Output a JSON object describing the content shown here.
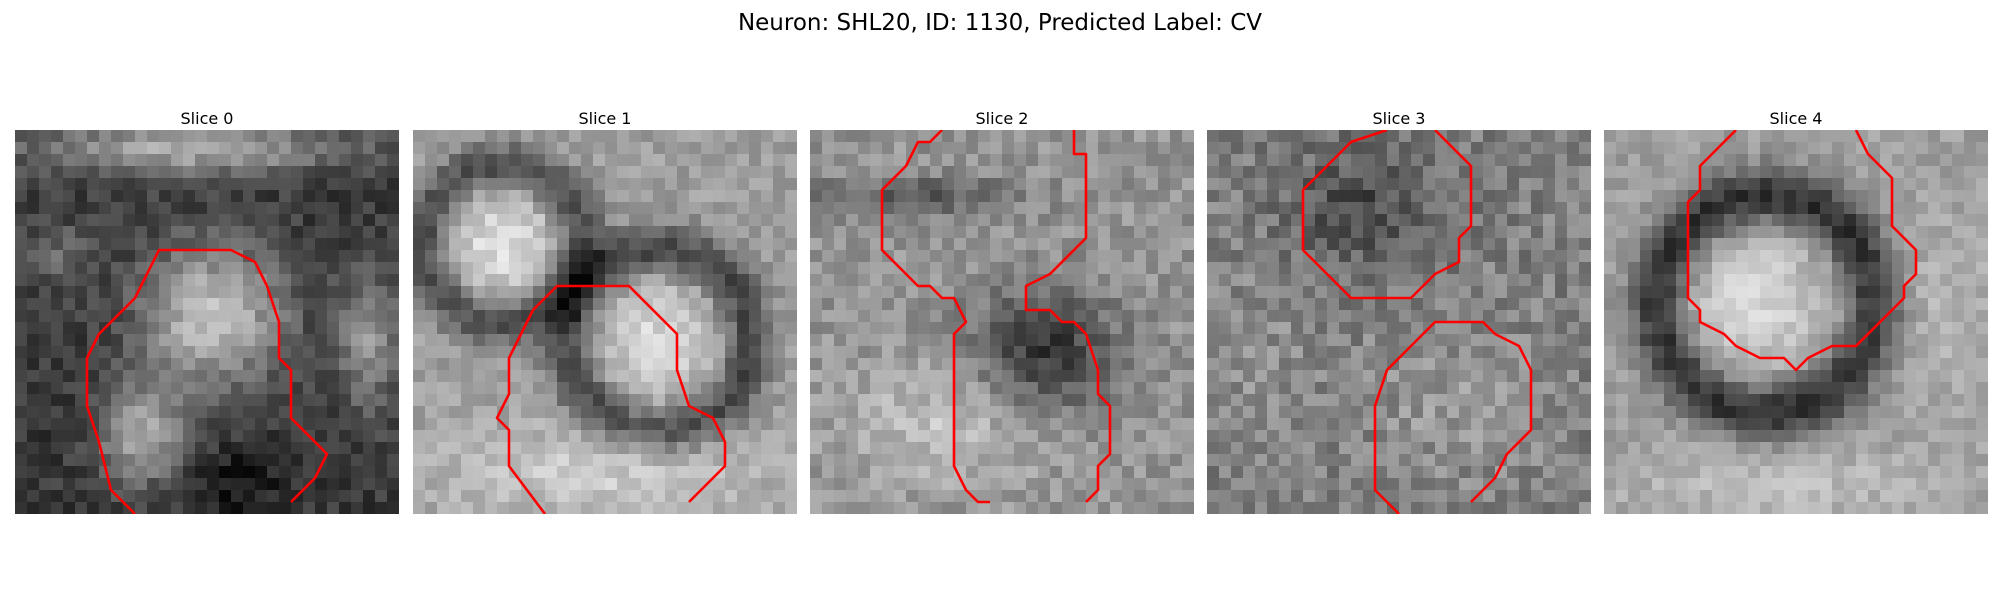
{
  "figure": {
    "title": "Neuron: SHL20, ID: 1130, Predicted Label: CV"
  },
  "panels": [
    {
      "title": "Slice 0"
    },
    {
      "title": "Slice 1"
    },
    {
      "title": "Slice 2"
    },
    {
      "title": "Slice 3"
    },
    {
      "title": "Slice 4"
    }
  ],
  "colors": {
    "contour": "#ff0000",
    "background": "#ffffff"
  },
  "colormap": "gray"
}
